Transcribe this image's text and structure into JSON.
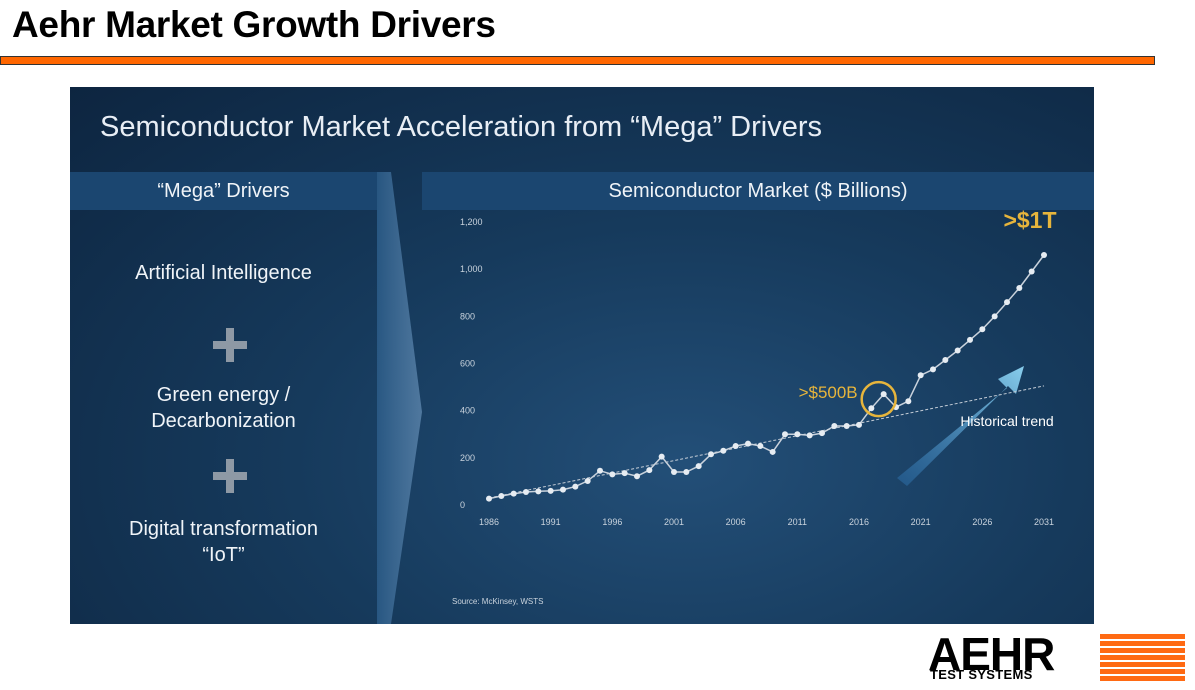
{
  "page": {
    "title": "Aehr Market Growth Drivers",
    "accent_color": "#ff6600"
  },
  "panel": {
    "heading": "Semiconductor Market Acceleration from “Mega” Drivers",
    "drivers_header": "“Mega” Drivers",
    "drivers": [
      {
        "line1": "Artificial Intelligence",
        "line2": ""
      },
      {
        "line1": "Green energy /",
        "line2": "Decarbonization"
      },
      {
        "line1": "Digital transformation",
        "line2": "“IoT”"
      }
    ],
    "market_header": "Semiconductor Market ($ Billions)",
    "source": "Source: McKinsey, WSTS"
  },
  "chart_data": {
    "type": "line",
    "title": "Semiconductor Market ($ Billions)",
    "xlabel": "",
    "ylabel": "",
    "xlim": [
      1986,
      2031
    ],
    "ylim": [
      0,
      1200
    ],
    "x_ticks": [
      "1986",
      "1991",
      "1996",
      "2001",
      "2006",
      "2011",
      "2016",
      "2021",
      "2026",
      "2031"
    ],
    "y_ticks": [
      "0",
      "200",
      "400",
      "600",
      "800",
      "1,000",
      "1,200"
    ],
    "series": [
      {
        "name": "Semiconductor Market",
        "x": [
          1986,
          1987,
          1988,
          1989,
          1990,
          1991,
          1992,
          1993,
          1994,
          1995,
          1996,
          1997,
          1998,
          1999,
          2000,
          2001,
          2002,
          2003,
          2004,
          2005,
          2006,
          2007,
          2008,
          2009,
          2010,
          2011,
          2012,
          2013,
          2014,
          2015,
          2016,
          2017,
          2018,
          2019,
          2020,
          2021,
          2022,
          2023,
          2024,
          2025,
          2026,
          2027,
          2028,
          2029,
          2030,
          2031
        ],
        "values": [
          27,
          38,
          48,
          55,
          58,
          60,
          65,
          78,
          102,
          145,
          130,
          135,
          122,
          148,
          205,
          140,
          140,
          165,
          215,
          230,
          250,
          260,
          250,
          225,
          300,
          300,
          295,
          305,
          335,
          335,
          340,
          410,
          470,
          415,
          440,
          550,
          575,
          615,
          655,
          700,
          745,
          800,
          860,
          920,
          990,
          1060
        ]
      },
      {
        "name": "Historical trend",
        "x": [
          1986,
          2031
        ],
        "values": [
          30,
          505
        ]
      }
    ],
    "annotations": [
      {
        "text": ">$500B",
        "x": 2018,
        "y": 470
      },
      {
        "text": ">$1T",
        "x": 2031,
        "y": 1060
      },
      {
        "text": "Historical trend",
        "x": 2028,
        "y": 340
      }
    ]
  },
  "logo": {
    "main": "AEHR",
    "sub": "TEST SYSTEMS"
  }
}
